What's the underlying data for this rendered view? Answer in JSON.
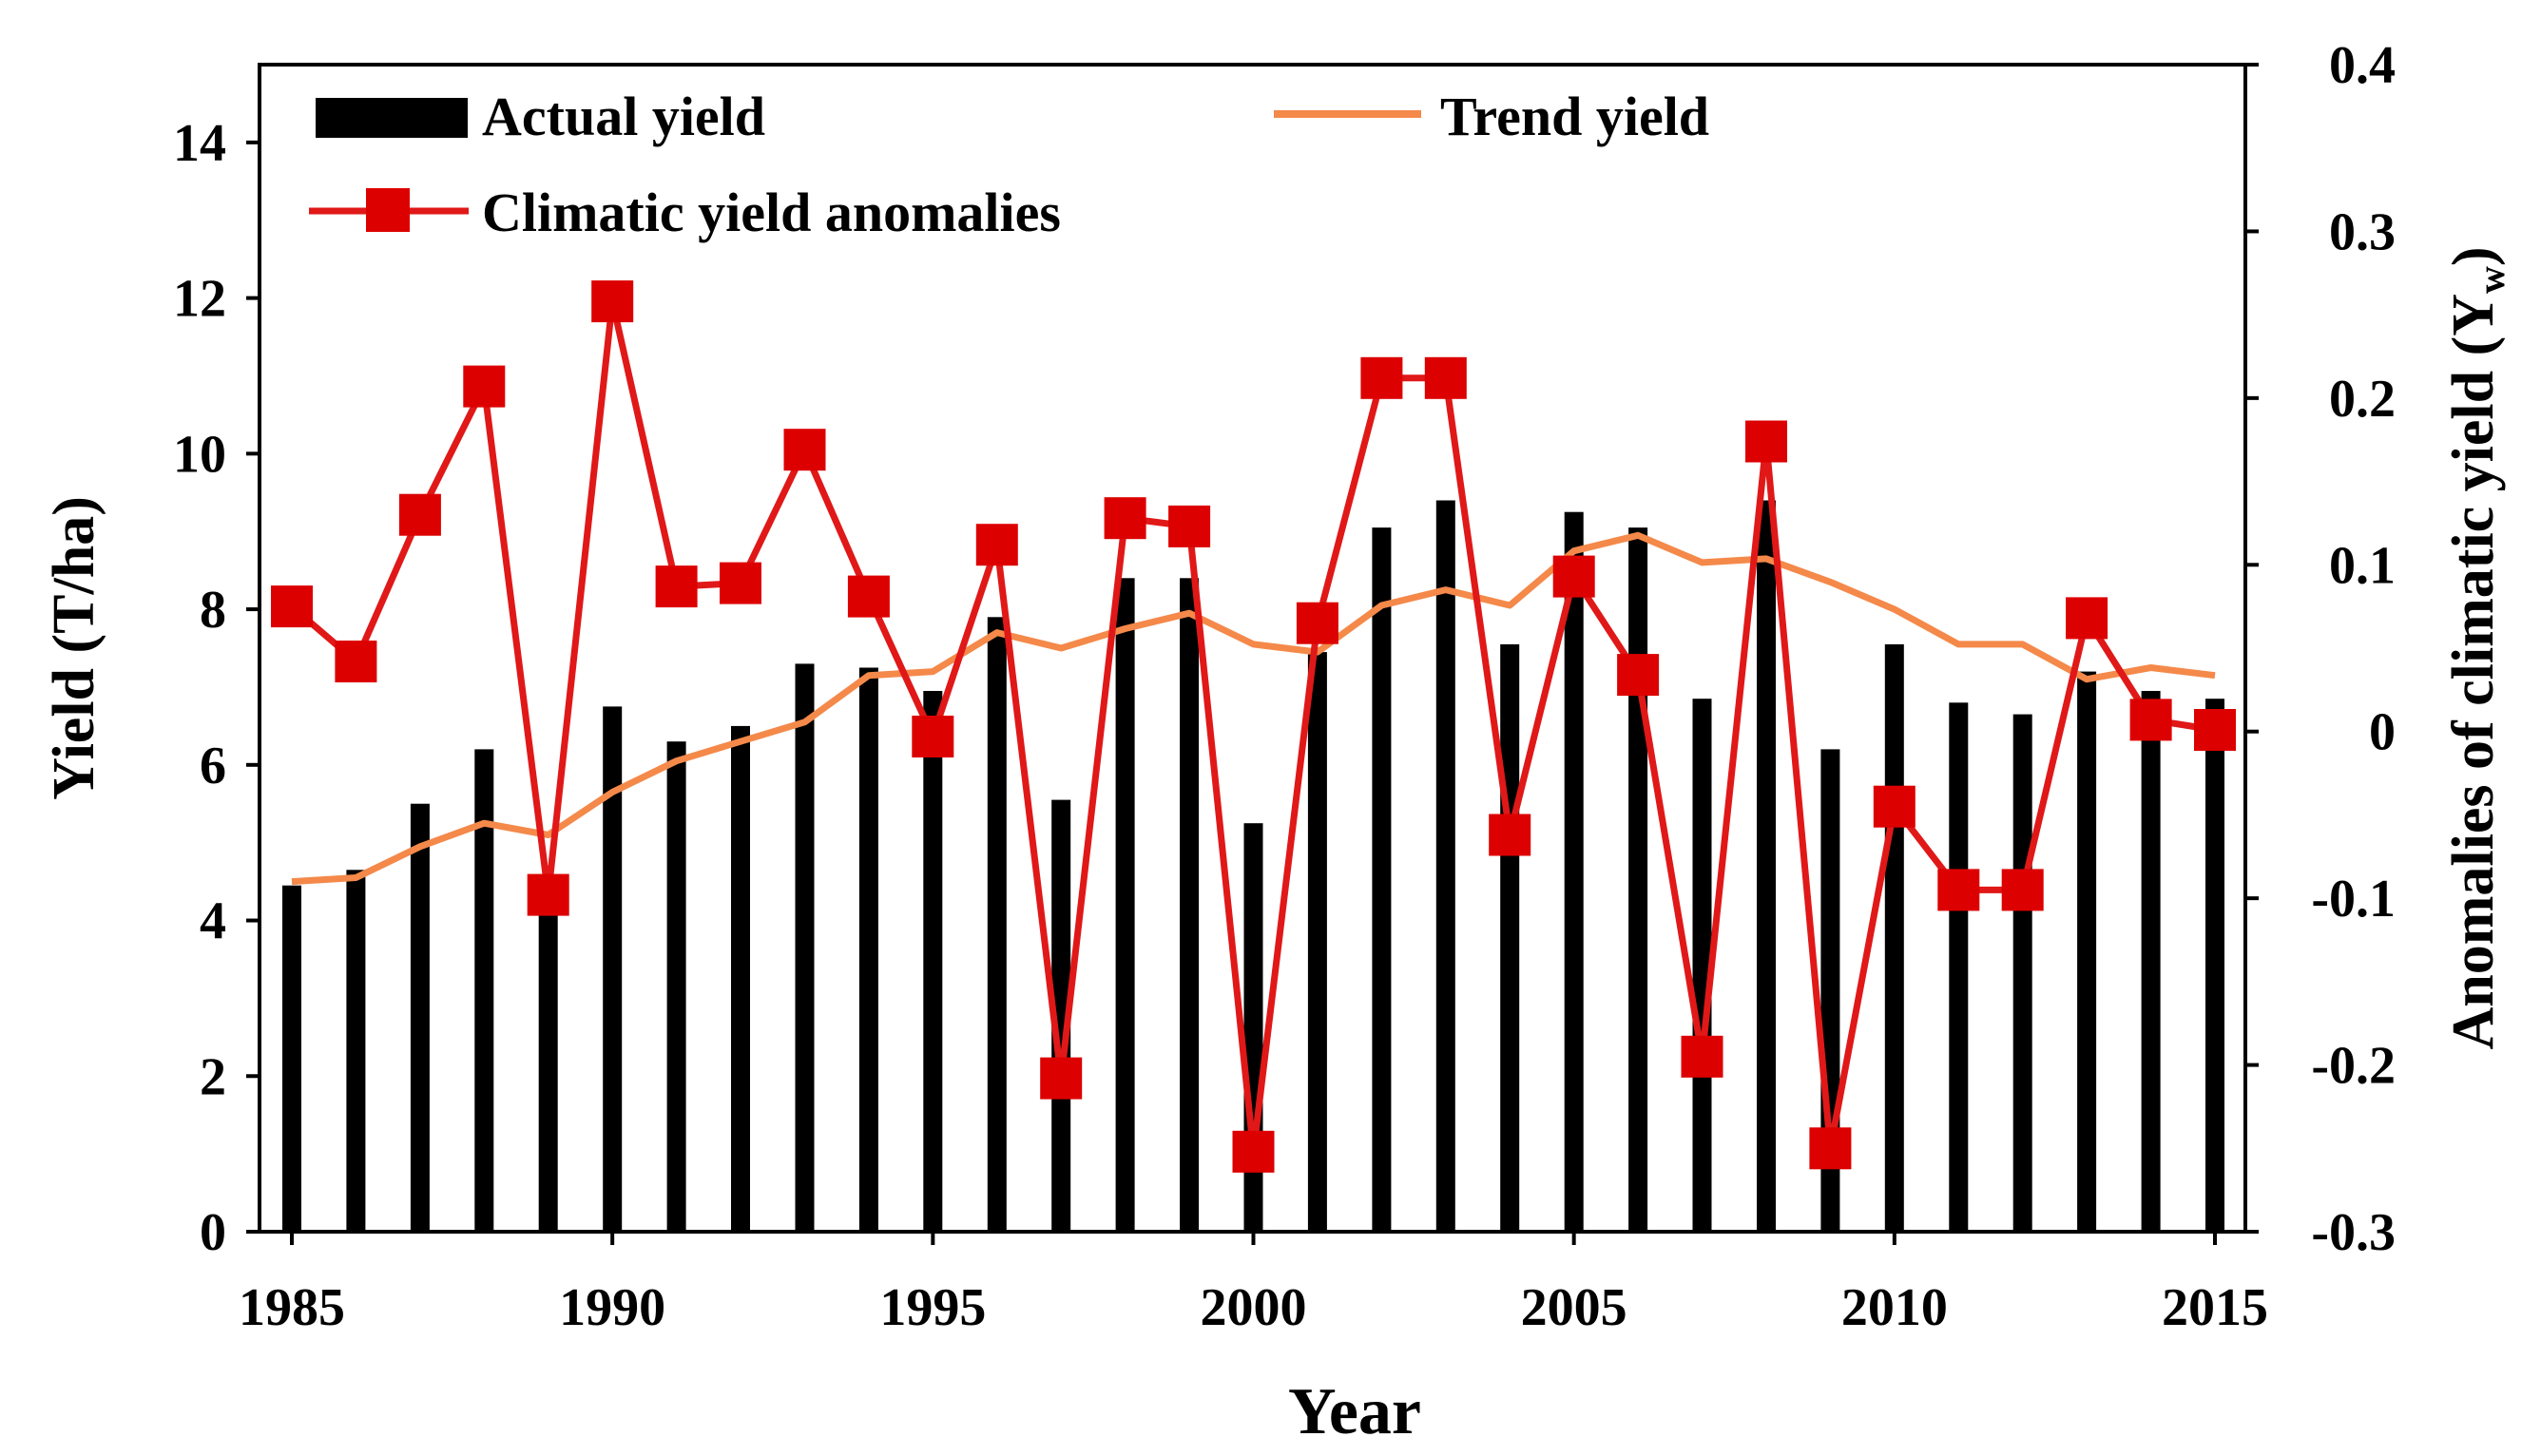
{
  "chart_data": {
    "type": "bar",
    "title": "",
    "xlabel": "Year",
    "ylabel": "Yield (T/ha)",
    "y2label": "Anomalies of climatic yield (Y",
    "y2label_sub": "w",
    "y2label_close": ")",
    "ylim": [
      0,
      15
    ],
    "y2lim": [
      -0.3,
      0.4
    ],
    "yticks": [
      0,
      2,
      4,
      6,
      8,
      10,
      12,
      14
    ],
    "y2ticks": [
      "-0.3",
      "-0.2",
      "-0.1",
      "0",
      "0.1",
      "0.2",
      "0.3",
      "0.4"
    ],
    "y2tick_values": [
      -0.3,
      -0.2,
      -0.1,
      0,
      0.1,
      0.2,
      0.3,
      0.4
    ],
    "xticks": [
      "1985",
      "1990",
      "1995",
      "2000",
      "2005",
      "2010",
      "2015"
    ],
    "xtick_values": [
      1985,
      1990,
      1995,
      2000,
      2005,
      2010,
      2015
    ],
    "x": [
      1985,
      1986,
      1987,
      1988,
      1989,
      1990,
      1991,
      1992,
      1993,
      1994,
      1995,
      1996,
      1997,
      1998,
      1999,
      2000,
      2001,
      2002,
      2003,
      2004,
      2005,
      2006,
      2007,
      2008,
      2009,
      2010,
      2011,
      2012,
      2013,
      2014,
      2015
    ],
    "series": [
      {
        "name": "Actual yield",
        "type": "bar",
        "axis": "left",
        "color": "#000000",
        "values": [
          4.45,
          4.65,
          5.5,
          6.2,
          4.4,
          6.75,
          6.3,
          6.5,
          7.3,
          7.25,
          6.95,
          7.9,
          5.55,
          8.4,
          8.4,
          5.25,
          7.45,
          9.05,
          9.4,
          7.55,
          9.25,
          9.05,
          6.85,
          9.4,
          6.2,
          7.55,
          6.8,
          6.65,
          7.2,
          6.95,
          6.85
        ]
      },
      {
        "name": "Trend yield",
        "type": "line",
        "axis": "left",
        "color": "#f4894a",
        "values": [
          4.5,
          4.55,
          4.95,
          5.25,
          5.1,
          5.65,
          6.05,
          6.3,
          6.55,
          7.15,
          7.2,
          7.7,
          7.5,
          7.75,
          7.95,
          7.55,
          7.45,
          8.05,
          8.25,
          8.05,
          8.75,
          8.95,
          8.6,
          8.65,
          8.35,
          8.0,
          7.55,
          7.55,
          7.1,
          7.25,
          7.15
        ]
      },
      {
        "name": "Climatic yield anomalies",
        "type": "line",
        "axis": "right",
        "color": "#e01818",
        "marker_color": "#dd0000",
        "values": [
          0.075,
          0.042,
          0.13,
          0.207,
          -0.098,
          0.258,
          0.087,
          0.089,
          0.169,
          0.081,
          -0.003,
          0.112,
          -0.208,
          0.128,
          0.123,
          -0.252,
          0.065,
          0.212,
          0.212,
          -0.062,
          0.093,
          0.034,
          -0.195,
          0.174,
          -0.25,
          -0.045,
          -0.095,
          -0.095,
          0.068,
          0.007,
          0.001
        ]
      }
    ],
    "legend": {
      "placement": "top-left",
      "entries": [
        "Actual yield",
        "Trend yield",
        "Climatic yield anomalies"
      ]
    }
  }
}
